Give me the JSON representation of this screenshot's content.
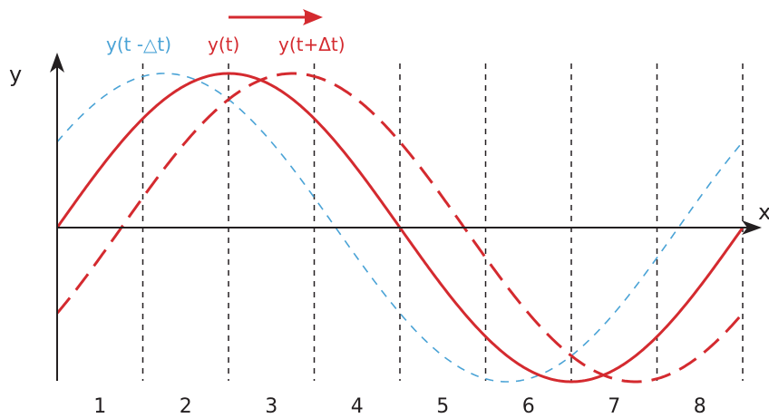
{
  "diagram": {
    "axis_x_label": "x",
    "axis_y_label": "y",
    "segments": [
      "1",
      "2",
      "3",
      "4",
      "5",
      "6",
      "7",
      "8"
    ],
    "arrow_direction": "right"
  },
  "legend": {
    "prev": "y(t -△t)",
    "current": "y(t)",
    "next": "y(t+Δt)"
  },
  "colors": {
    "axes": "#231f20",
    "grid": "#231f20",
    "current": "#d42a2f",
    "next": "#d42a2f",
    "prev": "#4aa3d6"
  },
  "waves": [
    {
      "key": "prev",
      "phase_shift_segments": -0.75,
      "style": "short-dash"
    },
    {
      "key": "current",
      "phase_shift_segments": 0,
      "style": "solid"
    },
    {
      "key": "next",
      "phase_shift_segments": 0.75,
      "style": "long-dash"
    }
  ]
}
